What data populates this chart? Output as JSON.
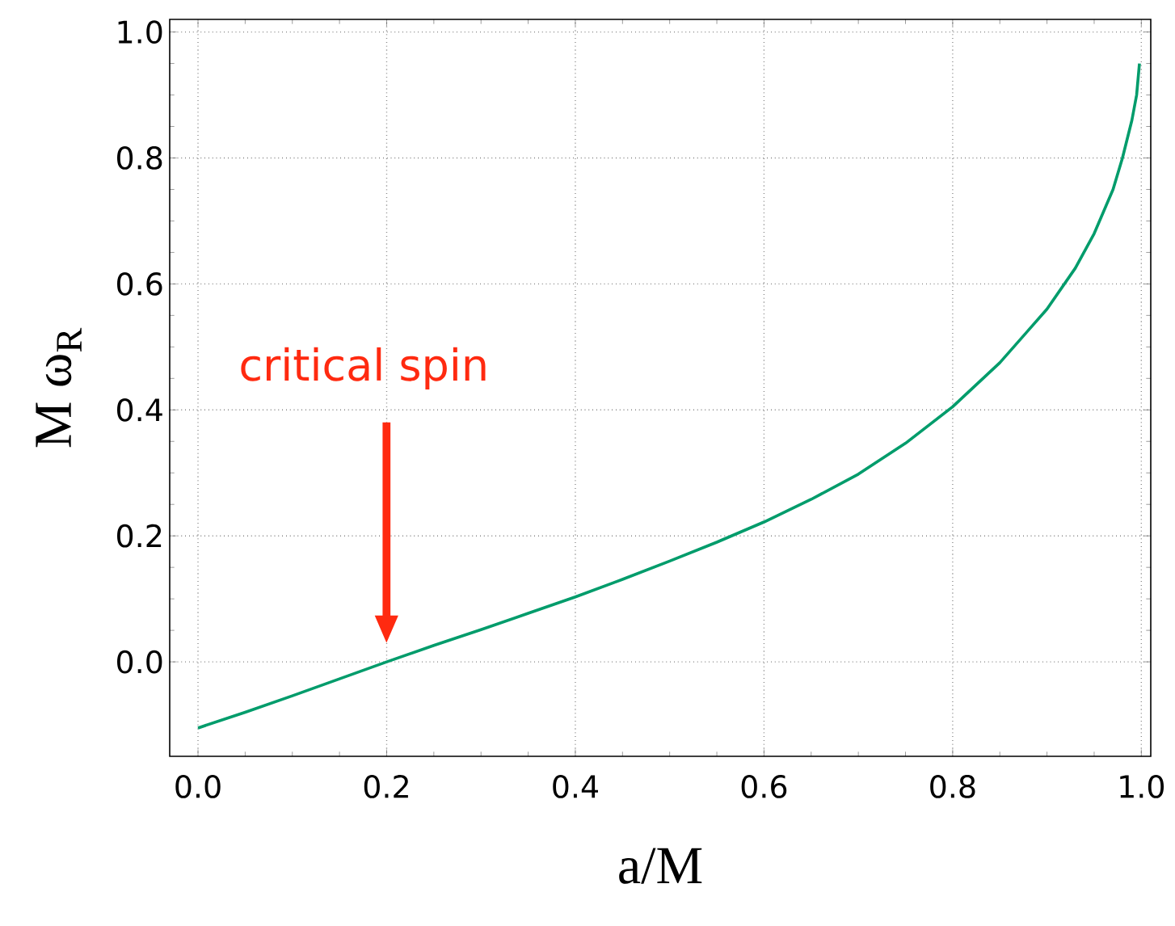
{
  "chart_data": {
    "type": "line",
    "xlabel": "a/M",
    "ylabel": "M ω$_{R}$",
    "x": [
      0.0,
      0.05,
      0.1,
      0.15,
      0.2,
      0.25,
      0.3,
      0.35,
      0.4,
      0.45,
      0.5,
      0.55,
      0.6,
      0.65,
      0.7,
      0.75,
      0.8,
      0.85,
      0.9,
      0.93,
      0.95,
      0.97,
      0.98,
      0.99,
      0.995,
      0.998
    ],
    "series": [
      {
        "color": "#009c6b",
        "values": [
          -0.105,
          -0.08,
          -0.054,
          -0.027,
          0.0,
          0.026,
          0.051,
          0.077,
          0.103,
          0.131,
          0.16,
          0.19,
          0.222,
          0.258,
          0.298,
          0.347,
          0.405,
          0.475,
          0.56,
          0.625,
          0.68,
          0.75,
          0.8,
          0.86,
          0.9,
          0.95
        ]
      }
    ],
    "annotations": [
      "critical spin"
    ],
    "xlim": [
      -0.03,
      1.01
    ],
    "ylim": [
      -0.15,
      1.02
    ],
    "xticks": [
      {
        "value": 0,
        "label": "0.0"
      },
      0.2,
      0.4,
      0.6,
      0.8,
      {
        "value": 1,
        "label": "1.0"
      }
    ],
    "yticks": [
      {
        "value": 0,
        "label": "0.0"
      },
      0.2,
      0.4,
      0.6,
      0.8,
      {
        "value": 1,
        "label": "1.0"
      }
    ],
    "grid": true,
    "marker": "none",
    "line_style": "solid"
  }
}
